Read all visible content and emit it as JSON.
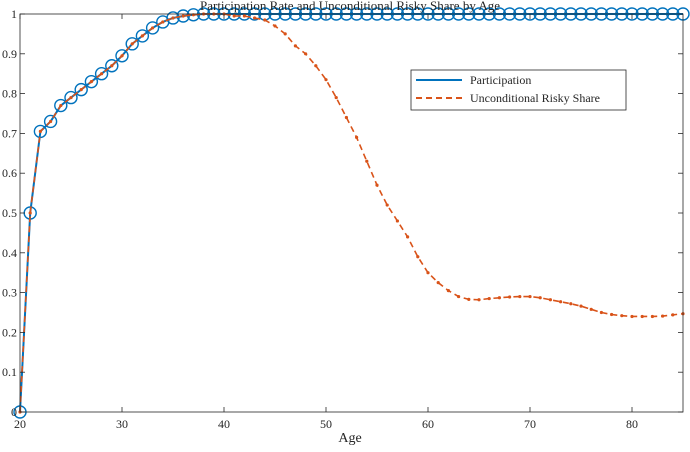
{
  "chart_data": {
    "type": "line",
    "title": "Participation Rate and Unconditional Risky Share by Age",
    "xlabel": "Age",
    "ylabel": "",
    "xlim": [
      20,
      85
    ],
    "ylim": [
      0,
      1
    ],
    "xticks": [
      20,
      30,
      40,
      50,
      60,
      70,
      80
    ],
    "yticks": [
      0,
      0.1,
      0.2,
      0.3,
      0.4,
      0.5,
      0.6,
      0.7,
      0.8,
      0.9,
      1
    ],
    "grid": false,
    "legend_location": "top-right",
    "x": [
      20,
      21,
      22,
      23,
      24,
      25,
      26,
      27,
      28,
      29,
      30,
      31,
      32,
      33,
      34,
      35,
      36,
      37,
      38,
      39,
      40,
      41,
      42,
      43,
      44,
      45,
      46,
      47,
      48,
      49,
      50,
      51,
      52,
      53,
      54,
      55,
      56,
      57,
      58,
      59,
      60,
      61,
      62,
      63,
      64,
      65,
      66,
      67,
      68,
      69,
      70,
      71,
      72,
      73,
      74,
      75,
      76,
      77,
      78,
      79,
      80,
      81,
      82,
      83,
      84,
      85
    ],
    "series": [
      {
        "name": "Participation",
        "color": "#0072BD",
        "line_style": "solid",
        "marker": "circle",
        "values": [
          0,
          0.5,
          0.705,
          0.73,
          0.77,
          0.79,
          0.81,
          0.83,
          0.85,
          0.87,
          0.895,
          0.925,
          0.945,
          0.965,
          0.98,
          0.99,
          0.995,
          0.998,
          1,
          1,
          1,
          1,
          1,
          1,
          1,
          1,
          1,
          1,
          1,
          1,
          1,
          1,
          1,
          1,
          1,
          1,
          1,
          1,
          1,
          1,
          1,
          1,
          1,
          1,
          1,
          1,
          1,
          1,
          1,
          1,
          1,
          1,
          1,
          1,
          1,
          1,
          1,
          1,
          1,
          1,
          1,
          1,
          1,
          1,
          1,
          1
        ]
      },
      {
        "name": "Unconditional Risky Share",
        "color": "#D95319",
        "line_style": "dashed",
        "marker": "dot",
        "values": [
          0,
          0.5,
          0.705,
          0.73,
          0.77,
          0.79,
          0.81,
          0.83,
          0.85,
          0.87,
          0.895,
          0.925,
          0.945,
          0.965,
          0.98,
          0.99,
          0.995,
          0.998,
          1,
          1,
          1,
          0.995,
          0.995,
          0.99,
          0.985,
          0.97,
          0.95,
          0.92,
          0.9,
          0.87,
          0.835,
          0.79,
          0.74,
          0.69,
          0.63,
          0.57,
          0.52,
          0.48,
          0.44,
          0.39,
          0.35,
          0.325,
          0.305,
          0.29,
          0.283,
          0.282,
          0.285,
          0.287,
          0.289,
          0.29,
          0.29,
          0.287,
          0.282,
          0.277,
          0.272,
          0.266,
          0.258,
          0.25,
          0.245,
          0.242,
          0.24,
          0.24,
          0.24,
          0.241,
          0.244,
          0.247
        ]
      }
    ]
  }
}
